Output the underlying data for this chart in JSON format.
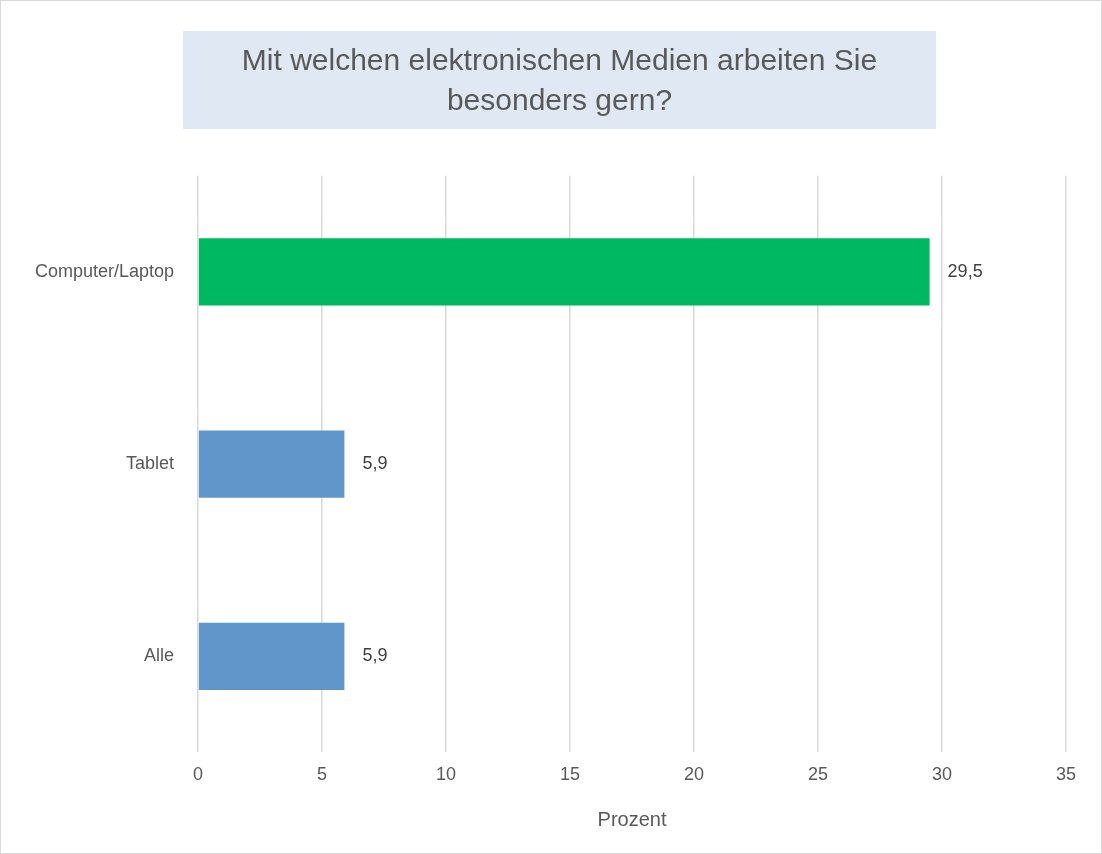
{
  "chart_data": {
    "type": "bar",
    "orientation": "horizontal",
    "title": "Mit welchen elektronischen Medien arbeiten Sie besonders gern?",
    "xlabel": "Prozent",
    "categories": [
      "Computer/Laptop",
      "Tablet",
      "Alle"
    ],
    "values": [
      29.5,
      5.9,
      5.9
    ],
    "colors": [
      "#00b862",
      "#6096c9",
      "#6096c9"
    ],
    "value_labels": [
      "29,5",
      "5,9",
      "5,9"
    ],
    "xlim": [
      0,
      35
    ],
    "xticks": [
      0,
      5,
      10,
      15,
      20,
      25,
      30,
      35
    ],
    "grid": "x",
    "legend": false
  }
}
